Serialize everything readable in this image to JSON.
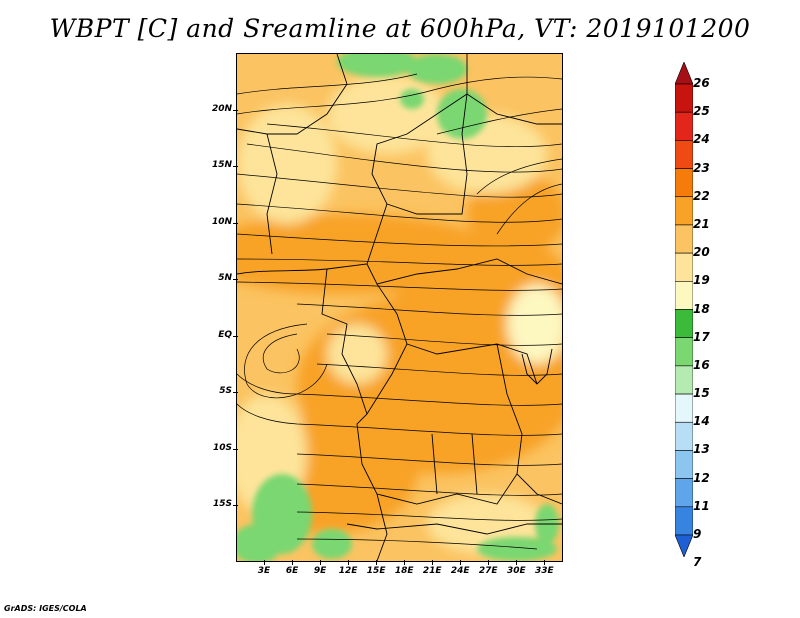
{
  "title": "WBPT [C] and Sreamline at 600hPa, VT: 2019101200",
  "credit": "GrADS: IGES/COLA",
  "map": {
    "lon_range": [
      0,
      35
    ],
    "lat_range": [
      -20,
      25
    ],
    "lat_ticks": [
      {
        "label": "20N",
        "value": 20
      },
      {
        "label": "15N",
        "value": 15
      },
      {
        "label": "10N",
        "value": 10
      },
      {
        "label": "5N",
        "value": 5
      },
      {
        "label": "EQ",
        "value": 0
      },
      {
        "label": "5S",
        "value": -5
      },
      {
        "label": "10S",
        "value": -10
      },
      {
        "label": "15S",
        "value": -15
      }
    ],
    "lon_ticks": [
      {
        "label": "3E",
        "value": 3
      },
      {
        "label": "6E",
        "value": 6
      },
      {
        "label": "9E",
        "value": 9
      },
      {
        "label": "12E",
        "value": 12
      },
      {
        "label": "15E",
        "value": 15
      },
      {
        "label": "18E",
        "value": 18
      },
      {
        "label": "21E",
        "value": 21
      },
      {
        "label": "24E",
        "value": 24
      },
      {
        "label": "27E",
        "value": 27
      },
      {
        "label": "30E",
        "value": 30
      },
      {
        "label": "33E",
        "value": 33
      }
    ]
  },
  "colorbar": {
    "labels": [
      "26",
      "25",
      "24",
      "23",
      "22",
      "21",
      "20",
      "19",
      "18",
      "17",
      "16",
      "15",
      "14",
      "13",
      "12",
      "11",
      "9",
      "7"
    ],
    "colors": [
      "#a50f15",
      "#c8140f",
      "#e2261b",
      "#f04a14",
      "#f57c0a",
      "#f8a227",
      "#fbc361",
      "#fde49a",
      "#fdf7c0",
      "#3cba3a",
      "#7ad771",
      "#b5ebb0",
      "#e4f7fb",
      "#b8def5",
      "#8cc5f0",
      "#5ea6e9",
      "#3783e0",
      "#1e5fd6"
    ]
  }
}
